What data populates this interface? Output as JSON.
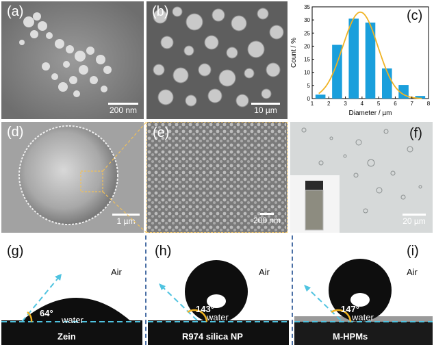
{
  "panels": {
    "a": {
      "label": "(a)",
      "scale": "200 nm"
    },
    "b": {
      "label": "(b)",
      "scale": "10 µm"
    },
    "c": {
      "label": "(c)"
    },
    "d": {
      "label": "(d)",
      "scale": "1 µm"
    },
    "e": {
      "label": "(e)",
      "scale": "200 nm"
    },
    "f": {
      "label": "(f)",
      "scale": "20 µm"
    },
    "g": {
      "label": "(g)",
      "air": "Air",
      "angle": "64°",
      "liquid": "water",
      "caption": "Zein"
    },
    "h": {
      "label": "(h)",
      "air": "Air",
      "angle": "143°",
      "liquid": "water",
      "caption": "R974 silica NP"
    },
    "i": {
      "label": "(i)",
      "air": "Air",
      "angle": "147°",
      "liquid": "water",
      "caption": "M-HPMs"
    }
  },
  "colors": {
    "bar": "#1a9fdc",
    "fit": "#f0b323",
    "dashed": "#4fc3e0",
    "angle_arrow": "#f0b323",
    "divider": "#4a6fa5",
    "zoom_box": "#f0c05a"
  },
  "chart_data": {
    "type": "bar",
    "x": [
      1.5,
      2.5,
      3.5,
      4.5,
      5.5,
      6.5,
      7.5
    ],
    "values": [
      1.5,
      20.5,
      30.5,
      29,
      11.5,
      5.2,
      1
    ],
    "fit_curve": true,
    "xlabel": "Diameter / µm",
    "ylabel": "Count / %",
    "xlim": [
      1,
      8
    ],
    "ylim": [
      0,
      35
    ],
    "xticks": [
      "1",
      "2",
      "3",
      "4",
      "5",
      "6",
      "7",
      "8"
    ],
    "yticks": [
      "0",
      "5",
      "10",
      "15",
      "20",
      "25",
      "30",
      "35"
    ],
    "legend": "none",
    "grid": false
  }
}
